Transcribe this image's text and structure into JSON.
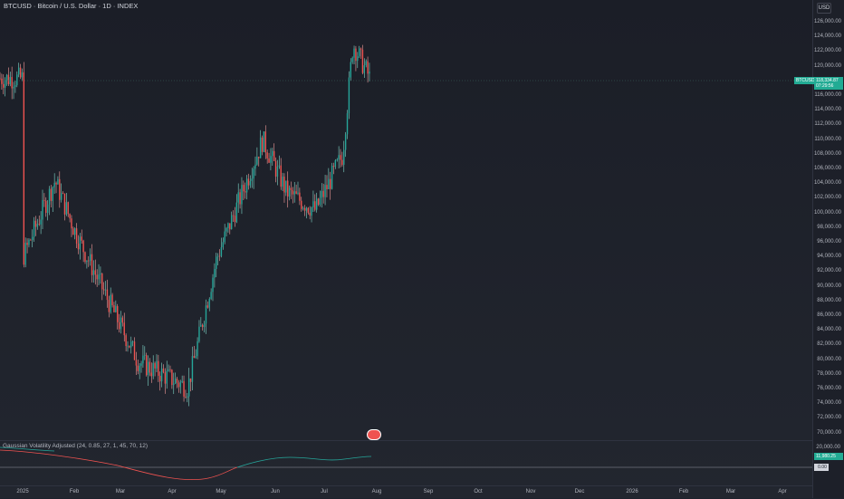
{
  "header": {
    "title": "BTCUSD · Bitcoin / U.S. Dollar · 1D · INDEX"
  },
  "price_scale": {
    "currency": "USD",
    "ticks": [
      "126,000.00",
      "124,000.00",
      "122,000.00",
      "120,000.00",
      "118,000.00",
      "116,000.00",
      "114,000.00",
      "112,000.00",
      "110,000.00",
      "108,000.00",
      "106,000.00",
      "104,000.00",
      "102,000.00",
      "100,000.00",
      "98,000.00",
      "96,000.00",
      "94,000.00",
      "92,000.00",
      "90,000.00",
      "88,000.00",
      "86,000.00",
      "84,000.00",
      "82,000.00",
      "80,000.00",
      "78,000.00",
      "76,000.00",
      "74,000.00",
      "72,000.00",
      "70,000.00"
    ]
  },
  "last_price": {
    "symbol": "BTCUSD",
    "price": "118,334.87",
    "countdown": "07:29:56",
    "color": "#22ab94"
  },
  "indicator": {
    "label": "Gaussian Volatility Adjusted  (24, 0.85, 27, 1, 45, 70, 12)",
    "scale_tick": "20,000.00",
    "value": "11,980.25",
    "zero": "0.00"
  },
  "x_axis": {
    "labels": [
      "2025",
      "Feb",
      "Mar",
      "Apr",
      "May",
      "Jun",
      "Jul",
      "Aug",
      "Sep",
      "Oct",
      "Nov",
      "Dec",
      "2026",
      "Feb",
      "Mar",
      "Apr"
    ]
  },
  "colors": {
    "up": "#26a69a",
    "down": "#ef5350",
    "background": "#1e222d"
  },
  "chart_data": {
    "type": "candlestick",
    "ylim": [
      70000,
      126000
    ],
    "approx_close_path": [
      {
        "x": "2025-01-01",
        "y": 94000
      },
      {
        "x": "2025-01-20",
        "y": 104500
      },
      {
        "x": "2025-02-01",
        "y": 97500
      },
      {
        "x": "2025-02-25",
        "y": 86000
      },
      {
        "x": "2025-03-10",
        "y": 80000
      },
      {
        "x": "2025-04-08",
        "y": 76500
      },
      {
        "x": "2025-04-25",
        "y": 94000
      },
      {
        "x": "2025-05-22",
        "y": 110000
      },
      {
        "x": "2025-06-05",
        "y": 103000
      },
      {
        "x": "2025-06-22",
        "y": 100500
      },
      {
        "x": "2025-07-08",
        "y": 108000
      },
      {
        "x": "2025-07-14",
        "y": 123000
      },
      {
        "x": "2025-07-24",
        "y": 118334.87
      }
    ]
  }
}
